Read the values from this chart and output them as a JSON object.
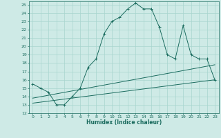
{
  "xlabel": "Humidex (Indice chaleur)",
  "background_color": "#ceeae6",
  "grid_color": "#a8d5cf",
  "line_color": "#1a6b5e",
  "xlim": [
    -0.5,
    23.5
  ],
  "ylim": [
    12,
    25.4
  ],
  "xticks": [
    0,
    1,
    2,
    3,
    4,
    5,
    6,
    7,
    8,
    9,
    10,
    11,
    12,
    13,
    14,
    15,
    16,
    17,
    18,
    19,
    20,
    21,
    22,
    23
  ],
  "yticks": [
    12,
    13,
    14,
    15,
    16,
    17,
    18,
    19,
    20,
    21,
    22,
    23,
    24,
    25
  ],
  "series1_x": [
    0,
    1,
    2,
    3,
    4,
    5,
    6,
    7,
    8,
    9,
    10,
    11,
    12,
    13,
    14,
    15,
    16,
    17,
    18,
    19,
    20,
    21,
    22,
    23
  ],
  "series1_y": [
    15.5,
    15.0,
    14.5,
    13.0,
    13.0,
    14.0,
    15.0,
    17.5,
    18.5,
    21.5,
    23.0,
    23.5,
    24.5,
    25.2,
    24.5,
    24.5,
    22.3,
    19.0,
    18.5,
    22.5,
    19.0,
    18.5,
    18.5,
    16.0
  ],
  "series2_x": [
    0,
    23
  ],
  "series2_y": [
    13.8,
    17.8
  ],
  "series3_x": [
    0,
    23
  ],
  "series3_y": [
    13.2,
    16.0
  ]
}
